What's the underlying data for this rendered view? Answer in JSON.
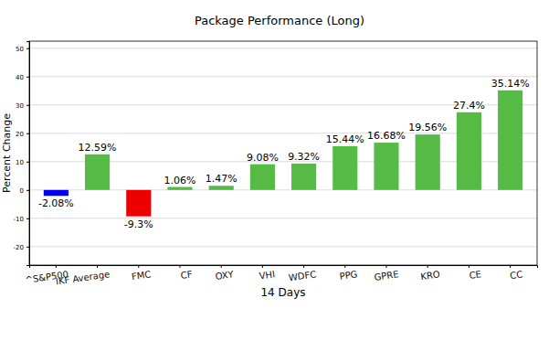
{
  "chart_data": {
    "type": "bar",
    "title": "Package Performance (Long)",
    "x_label": "14 Days",
    "y_label": "Percent Change",
    "categories": [
      "^S&P500",
      "IKF Average",
      "FMC",
      "CF",
      "OXY",
      "VHI",
      "WDFC",
      "PPG",
      "GPRE",
      "KRO",
      "CE",
      "CC"
    ],
    "values": [
      -2.08,
      12.59,
      -9.3,
      1.06,
      1.47,
      9.08,
      9.32,
      15.44,
      16.68,
      19.56,
      27.4,
      35.14
    ],
    "value_labels": [
      "-2.08%",
      "12.59%",
      "-9.3%",
      "1.06%",
      "1.47%",
      "9.08%",
      "9.32%",
      "15.44%",
      "16.68%",
      "19.56%",
      "27.4%",
      "35.14%"
    ],
    "colors": [
      "#0000ee",
      "#55bb44",
      "#ee0000",
      "#55bb44",
      "#55bb44",
      "#55bb44",
      "#55bb44",
      "#55bb44",
      "#55bb44",
      "#55bb44",
      "#55bb44",
      "#55bb44"
    ],
    "ylim": [
      -26.5,
      52.5
    ],
    "yticks": [
      -20,
      -10,
      0,
      10,
      20,
      30,
      40,
      50
    ],
    "grid": true,
    "data_labels": true
  }
}
